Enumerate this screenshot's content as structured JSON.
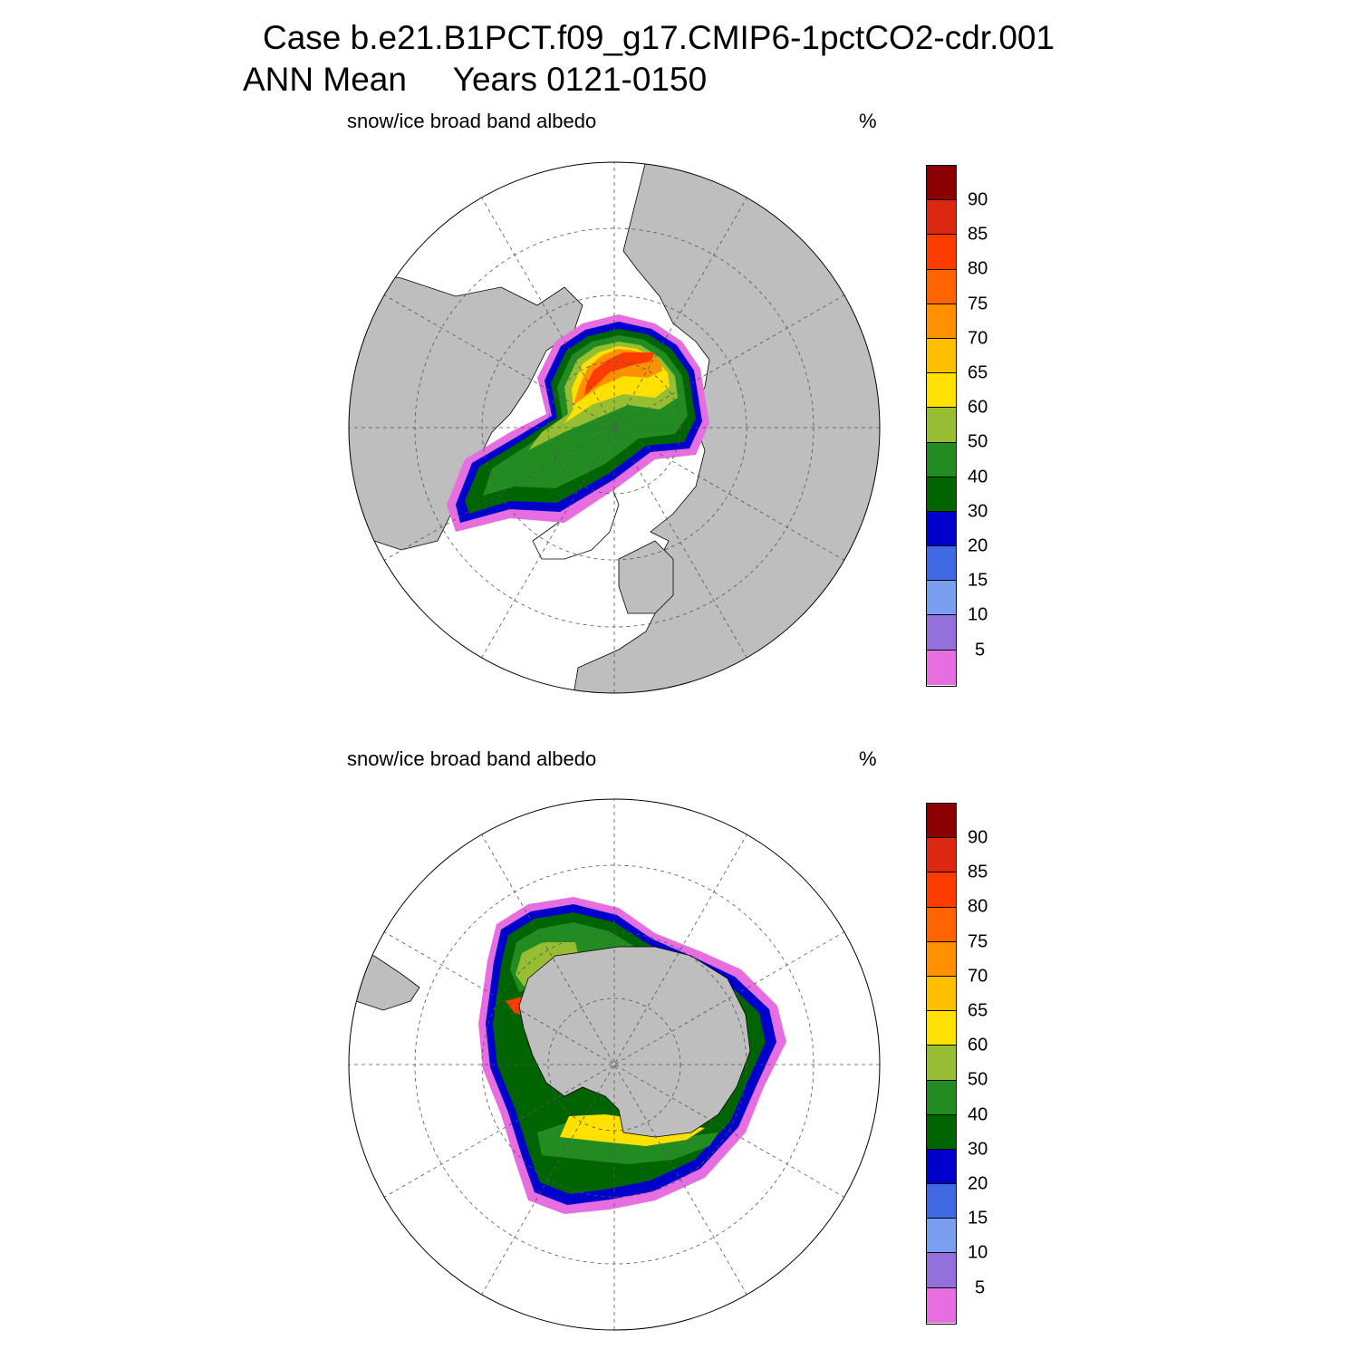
{
  "header": {
    "line1": "Case b.e21.B1PCT.f09_g17.CMIP6-1pctCO2-cdr.001",
    "line2": "ANN Mean     Years 0121-0150"
  },
  "panels": [
    {
      "id": "north",
      "title": "snow/ice broad band albedo",
      "units": "%"
    },
    {
      "id": "south",
      "title": "snow/ice broad band albedo",
      "units": "%"
    }
  ],
  "colorbar": {
    "labels": [
      "90",
      "85",
      "80",
      "75",
      "70",
      "65",
      "60",
      "50",
      "40",
      "30",
      "20",
      "15",
      "10",
      "5"
    ],
    "colors_top_to_bottom": [
      "#8b0000",
      "#dc2811",
      "#ff3c00",
      "#ff6400",
      "#ff9100",
      "#ffbe00",
      "#ffe100",
      "#97be32",
      "#228b22",
      "#006400",
      "#0000cd",
      "#4169e1",
      "#7b9ff0",
      "#9370db",
      "#e66ee0"
    ]
  },
  "colors": {
    "land": "#bebebe",
    "ocean": "#ffffff",
    "grid": "#555555"
  }
}
